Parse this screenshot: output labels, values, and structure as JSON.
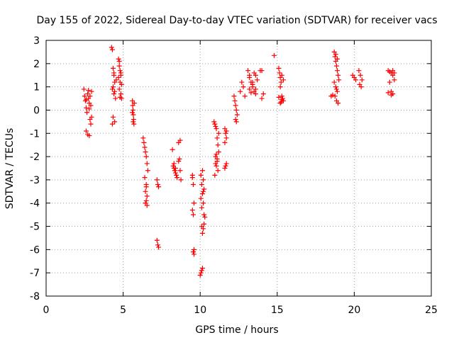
{
  "chart_data": {
    "type": "scatter",
    "title": "Day 155 of 2022, Sidereal Day-to-day VTEC variation (SDTVAR) for receiver vacs",
    "xlabel": "GPS time / hours",
    "ylabel": "SDTVAR / TECUs",
    "xlim": [
      0,
      25
    ],
    "ylim": [
      -8,
      3
    ],
    "grid": true,
    "marker": "plus",
    "color": "#ff0000",
    "x_ticks": [
      "0",
      "5",
      "10",
      "15",
      "20",
      "25"
    ],
    "y_ticks": [
      "-8",
      "-7",
      "-6",
      "-5",
      "-4",
      "-3",
      "-2",
      "-1",
      "0",
      "1",
      "2",
      "3"
    ],
    "series": [
      {
        "name": "SDTVAR",
        "x": [
          2.45,
          2.5,
          2.55,
          2.6,
          2.65,
          2.7,
          2.75,
          2.8,
          2.85,
          2.9,
          2.95,
          2.6,
          2.7,
          2.8,
          2.9,
          2.75,
          2.85,
          2.95,
          2.6,
          2.8,
          4.25,
          4.3,
          4.35,
          4.4,
          4.45,
          4.3,
          4.4,
          4.5,
          4.35,
          4.45,
          4.3,
          4.4,
          4.55,
          4.35,
          4.45,
          4.7,
          4.75,
          4.8,
          4.85,
          4.7,
          4.8,
          4.9,
          4.75,
          4.85,
          4.8,
          4.9,
          4.75,
          4.85,
          5.6,
          5.62,
          5.64,
          5.66,
          5.68,
          5.7,
          5.72,
          5.6,
          5.65,
          6.3,
          6.35,
          6.4,
          6.45,
          6.5,
          6.55,
          6.6,
          6.4,
          6.5,
          6.45,
          6.55,
          6.5,
          6.45,
          6.55,
          6.5,
          7.2,
          7.25,
          7.3,
          7.2,
          7.25,
          7.3,
          8.2,
          8.25,
          8.3,
          8.35,
          8.4,
          8.45,
          8.5,
          8.3,
          8.4,
          8.6,
          8.65,
          8.7,
          8.75,
          8.6,
          8.7,
          9.5,
          9.55,
          9.6,
          9.5,
          9.55,
          9.6,
          9.55,
          9.6,
          9.5,
          10.0,
          10.05,
          10.1,
          10.15,
          10.2,
          10.25,
          10.3,
          10.1,
          10.2,
          10.05,
          10.15,
          10.25,
          10.1,
          10.2,
          10.05,
          10.15,
          10.25,
          10.1,
          10.2,
          10.15,
          10.9,
          10.95,
          11.0,
          11.05,
          11.1,
          11.15,
          11.2,
          11.0,
          11.1,
          11.05,
          11.15,
          10.95,
          11.05,
          11.1,
          11.0,
          11.2,
          11.6,
          11.65,
          11.7,
          11.6,
          11.7,
          11.65,
          11.6,
          11.7,
          12.2,
          12.25,
          12.3,
          12.35,
          12.4,
          12.3,
          12.35,
          12.6,
          12.7,
          12.8,
          12.9,
          13.1,
          13.2,
          13.3,
          13.4,
          13.5,
          13.6,
          13.7,
          13.2,
          13.4,
          13.6,
          13.3,
          13.5,
          13.2,
          13.4,
          13.6,
          13.9,
          14.0,
          14.1,
          14.0,
          14.8,
          15.1,
          15.15,
          15.2,
          15.25,
          15.3,
          15.35,
          15.4,
          15.2,
          15.3,
          15.1,
          15.2,
          15.3,
          15.4,
          15.25,
          18.5,
          18.6,
          18.7,
          18.75,
          18.8,
          18.85,
          18.9,
          18.95,
          19.0,
          18.8,
          18.9,
          18.75,
          18.85,
          18.95,
          18.8,
          18.9,
          18.7,
          18.85,
          19.9,
          20.0,
          20.1,
          20.3,
          20.4,
          20.5,
          20.35,
          20.45,
          22.2,
          22.3,
          22.4,
          22.5,
          22.6,
          22.3,
          22.4,
          22.5,
          22.2,
          22.4,
          22.5,
          22.6
        ],
        "y": [
          0.9,
          0.6,
          0.4,
          0.1,
          -0.1,
          0.7,
          0.5,
          0.3,
          -0.4,
          -0.6,
          0.8,
          -0.9,
          -1.05,
          -1.1,
          0.2,
          0.85,
          0.6,
          -0.3,
          0.45,
          0.05,
          2.7,
          2.6,
          1.8,
          1.5,
          1.2,
          0.9,
          0.7,
          0.5,
          -0.3,
          -0.5,
          -0.6,
          1.6,
          1.3,
          1.0,
          0.8,
          2.2,
          2.1,
          1.7,
          1.6,
          1.4,
          1.2,
          1.1,
          0.9,
          0.7,
          0.55,
          0.5,
          1.9,
          1.5,
          0.4,
          0.2,
          0.0,
          -0.2,
          -0.4,
          -0.6,
          0.3,
          -0.1,
          -0.5,
          -1.2,
          -1.4,
          -1.6,
          -1.8,
          -2.0,
          -2.3,
          -2.6,
          -2.9,
          -3.2,
          -3.5,
          -3.7,
          -3.9,
          -4.0,
          -4.1,
          -3.3,
          -3.0,
          -3.2,
          -3.3,
          -5.6,
          -5.8,
          -5.9,
          -1.7,
          -2.4,
          -2.5,
          -2.6,
          -2.7,
          -2.8,
          -2.9,
          -2.3,
          -2.5,
          -1.4,
          -2.1,
          -2.6,
          -3.0,
          -2.2,
          -1.3,
          -2.8,
          -3.2,
          -4.0,
          -4.3,
          -4.5,
          -6.0,
          -6.1,
          -6.2,
          -2.9,
          -7.1,
          -7.0,
          -6.9,
          -5.3,
          -5.1,
          -4.9,
          -4.6,
          -4.2,
          -4.0,
          -3.8,
          -3.6,
          -3.4,
          -3.2,
          -3.0,
          -2.8,
          -2.6,
          -4.5,
          -5.0,
          -3.5,
          -6.8,
          -0.5,
          -0.6,
          -0.7,
          -0.8,
          -1.2,
          -1.5,
          -1.8,
          -2.0,
          -2.2,
          -2.4,
          -2.6,
          -2.8,
          -1.9,
          -2.1,
          -2.3,
          -1.0,
          -0.8,
          -1.0,
          -1.2,
          -1.4,
          -2.3,
          -2.4,
          -2.5,
          -0.9,
          0.6,
          0.4,
          0.2,
          0.0,
          -0.2,
          -0.4,
          -0.5,
          0.8,
          1.2,
          1.0,
          0.6,
          1.7,
          1.5,
          1.2,
          1.0,
          0.8,
          0.7,
          1.3,
          1.4,
          1.1,
          0.9,
          0.75,
          1.6,
          0.9,
          1.2,
          1.5,
          1.7,
          1.7,
          0.7,
          0.5,
          2.35,
          1.8,
          1.6,
          1.4,
          1.2,
          0.6,
          0.5,
          0.4,
          0.3,
          0.45,
          0.55,
          1.0,
          1.5,
          1.3,
          0.35,
          0.6,
          0.65,
          2.5,
          2.3,
          2.1,
          1.9,
          1.7,
          1.5,
          1.3,
          1.0,
          0.8,
          0.6,
          0.4,
          0.3,
          2.4,
          2.2,
          1.2,
          0.9,
          1.5,
          1.4,
          1.3,
          1.7,
          1.5,
          1.3,
          1.1,
          1.0,
          1.7,
          1.65,
          1.6,
          1.5,
          1.3,
          1.2,
          0.8,
          0.7,
          0.75,
          0.65,
          1.7,
          1.6
        ]
      }
    ]
  }
}
